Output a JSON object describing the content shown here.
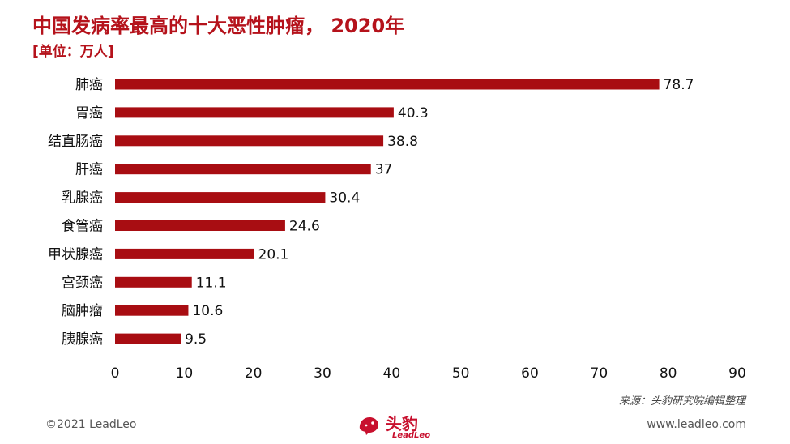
{
  "header": {
    "title": "中国发病率最高的十大恶性肿瘤， 2020年",
    "unit": "[单位：万人]"
  },
  "chart_data": {
    "type": "bar",
    "orientation": "horizontal",
    "categories": [
      "肺癌",
      "胃癌",
      "结直肠癌",
      "肝癌",
      "乳腺癌",
      "食管癌",
      "甲状腺癌",
      "宫颈癌",
      "脑肿瘤",
      "胰腺癌"
    ],
    "values": [
      78.7,
      40.3,
      38.8,
      37,
      30.4,
      24.6,
      20.1,
      11.1,
      10.6,
      9.5
    ],
    "value_labels": [
      "78.7",
      "40.3",
      "38.8",
      "37",
      "30.4",
      "24.6",
      "20.1",
      "11.1",
      "10.6",
      "9.5"
    ],
    "xlim": [
      0,
      90
    ],
    "xticks": [
      0,
      10,
      20,
      30,
      40,
      50,
      60,
      70,
      80,
      90
    ],
    "bar_color": "#a80d12",
    "grid": false,
    "legend": "none"
  },
  "footer": {
    "source": "来源：头豹研究院编辑整理",
    "copyright": "©2021 LeadLeo",
    "website": "www.leadleo.com",
    "logo_text": "头豹",
    "logo_sub": "LeadLeo",
    "logo_color": "#c8102e"
  }
}
